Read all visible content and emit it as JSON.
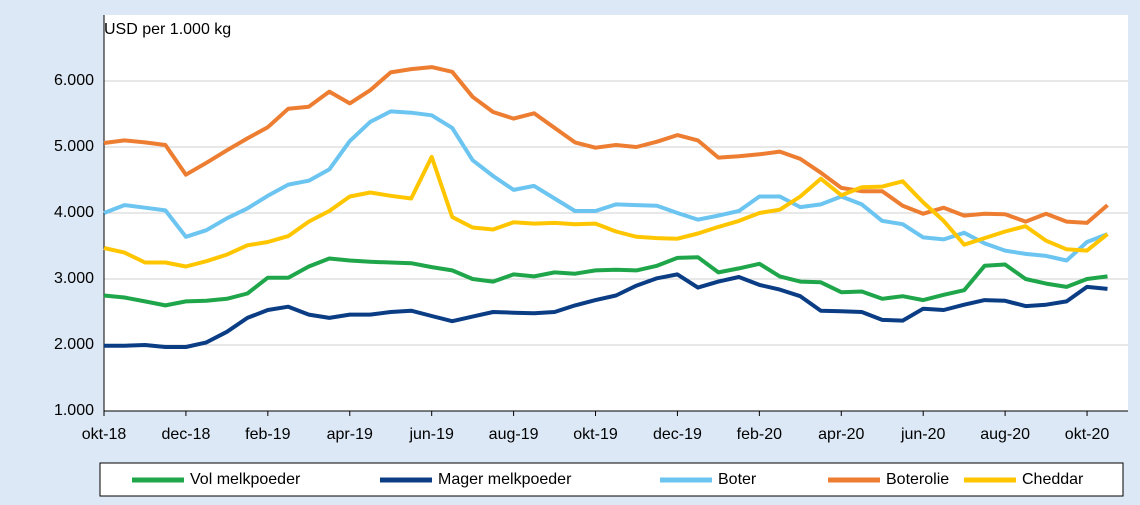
{
  "chart_data": {
    "type": "line",
    "y_label": "USD per 1.000 kg",
    "categories": [
      "okt-18",
      null,
      null,
      null,
      "dec-18",
      null,
      null,
      null,
      "feb-19",
      null,
      null,
      null,
      "apr-19",
      null,
      null,
      null,
      "jun-19",
      null,
      null,
      null,
      "aug-19",
      null,
      null,
      null,
      "okt-19",
      null,
      null,
      null,
      "dec-19",
      null,
      null,
      null,
      "feb-20",
      null,
      null,
      null,
      "apr-20",
      null,
      null,
      null,
      "jun-20",
      null,
      null,
      null,
      "aug-20",
      null,
      null,
      null,
      "okt-20",
      null
    ],
    "ylim": [
      1000,
      6500
    ],
    "yticks": [
      {
        "value": 1000,
        "label": "1.000"
      },
      {
        "value": 2000,
        "label": "2.000"
      },
      {
        "value": 3000,
        "label": "3.000"
      },
      {
        "value": 4000,
        "label": "4.000"
      },
      {
        "value": 5000,
        "label": "5.000"
      },
      {
        "value": 6000,
        "label": "6.000"
      }
    ],
    "grid": true,
    "legend": "bottom",
    "series": [
      {
        "name": "Vol melkpoeder",
        "color": "#1fa64a",
        "values": [
          2750,
          2720,
          2660,
          2600,
          2660,
          2670,
          2700,
          2780,
          3020,
          3020,
          3190,
          3310,
          3280,
          3260,
          3250,
          3240,
          3180,
          3130,
          3000,
          2960,
          3070,
          3040,
          3100,
          3080,
          3130,
          3140,
          3130,
          3200,
          3320,
          3330,
          3100,
          3160,
          3230,
          3040,
          2960,
          2950,
          2800,
          2810,
          2700,
          2740,
          2680,
          2760,
          2830,
          3200,
          3220,
          3000,
          2930,
          2880,
          3000,
          3040
        ]
      },
      {
        "name": "Mager melkpoeder",
        "color": "#0b3d85",
        "values": [
          1990,
          1990,
          2000,
          1970,
          1970,
          2040,
          2200,
          2410,
          2530,
          2580,
          2460,
          2410,
          2460,
          2460,
          2500,
          2520,
          2440,
          2360,
          2430,
          2500,
          2490,
          2480,
          2500,
          2600,
          2680,
          2750,
          2900,
          3010,
          3070,
          2870,
          2960,
          3030,
          2910,
          2840,
          2740,
          2520,
          2510,
          2500,
          2380,
          2370,
          2550,
          2530,
          2610,
          2680,
          2670,
          2590,
          2610,
          2660,
          2880,
          2850
        ]
      },
      {
        "name": "Boter",
        "color": "#6cc5f0",
        "values": [
          4000,
          4120,
          4080,
          4040,
          3640,
          3740,
          3920,
          4070,
          4260,
          4430,
          4490,
          4660,
          5090,
          5380,
          5540,
          5520,
          5480,
          5290,
          4800,
          4560,
          4350,
          4410,
          4220,
          4030,
          4030,
          4130,
          4120,
          4110,
          4000,
          3900,
          3960,
          4030,
          4250,
          4250,
          4090,
          4130,
          4250,
          4130,
          3880,
          3830,
          3630,
          3600,
          3700,
          3540,
          3430,
          3380,
          3350,
          3280,
          3560,
          3680
        ]
      },
      {
        "name": "Boterolie",
        "color": "#ed7d31",
        "values": [
          5060,
          5100,
          5070,
          5030,
          4580,
          4760,
          4950,
          5130,
          5300,
          5580,
          5610,
          5840,
          5660,
          5860,
          6130,
          6180,
          6210,
          6140,
          5760,
          5530,
          5430,
          5510,
          5290,
          5070,
          4990,
          5030,
          5000,
          5080,
          5180,
          5100,
          4840,
          4860,
          4890,
          4930,
          4820,
          4610,
          4380,
          4330,
          4330,
          4110,
          3990,
          4080,
          3960,
          3990,
          3980,
          3870,
          3990,
          3870,
          3850,
          4120
        ]
      },
      {
        "name": "Cheddar",
        "color": "#ffc600",
        "values": [
          3470,
          3400,
          3250,
          3250,
          3190,
          3270,
          3370,
          3510,
          3560,
          3650,
          3870,
          4030,
          4250,
          4310,
          4260,
          4220,
          4850,
          3940,
          3780,
          3750,
          3860,
          3840,
          3850,
          3830,
          3840,
          3720,
          3640,
          3620,
          3610,
          3690,
          3790,
          3880,
          4000,
          4050,
          4250,
          4520,
          4270,
          4390,
          4400,
          4480,
          4160,
          3880,
          3520,
          3620,
          3720,
          3800,
          3580,
          3450,
          3430,
          3680
        ]
      }
    ]
  }
}
